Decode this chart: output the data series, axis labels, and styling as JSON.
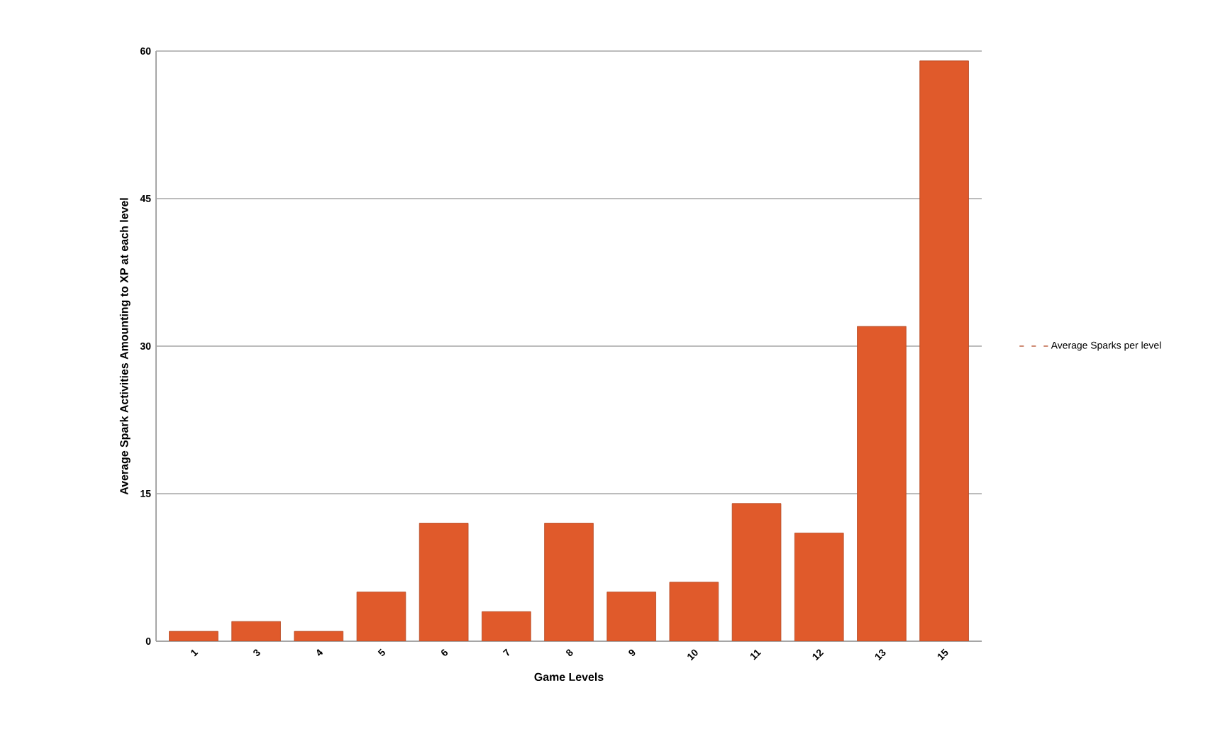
{
  "chart_data": {
    "type": "bar",
    "xlabel": "Game Levels",
    "ylabel": "Average Spark Activities Amounting to XP at each level",
    "categories": [
      "1",
      "3",
      "4",
      "5",
      "6",
      "7",
      "8",
      "9",
      "10",
      "11",
      "12",
      "13",
      "15"
    ],
    "series": [
      {
        "name": "Average Sparks per level",
        "color": "#e05a2b",
        "values": [
          1,
          2,
          1,
          5,
          12,
          3,
          12,
          5,
          6,
          14,
          11,
          32,
          59
        ]
      }
    ],
    "ylim": [
      0,
      60
    ],
    "yticks": [
      0,
      15,
      30,
      45,
      60
    ],
    "grid": "y",
    "legend": "right"
  }
}
